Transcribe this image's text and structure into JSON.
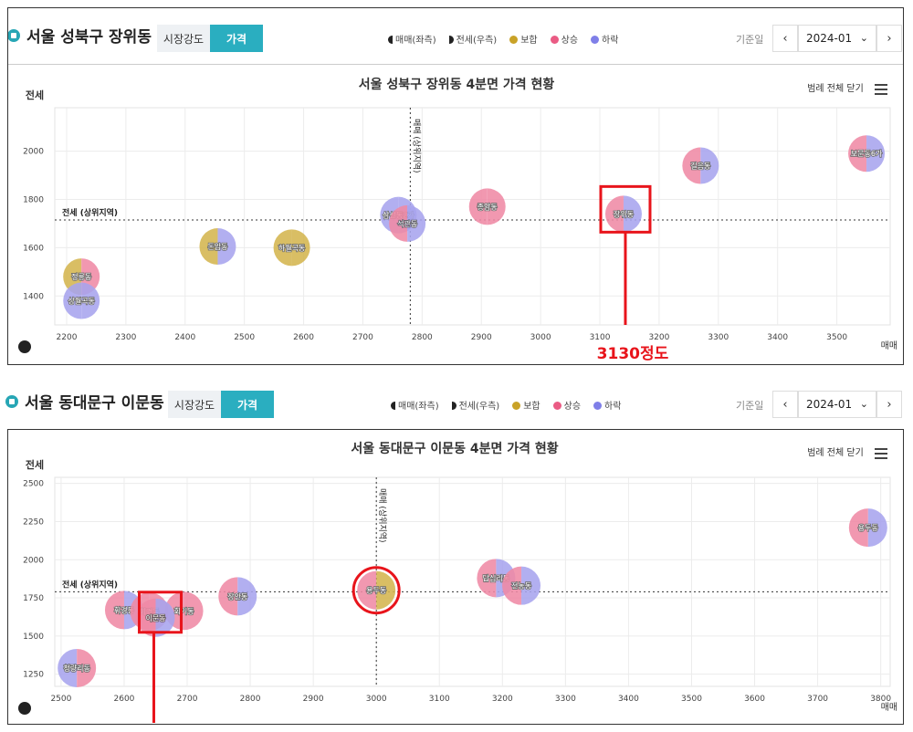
{
  "panels": [
    {
      "region": "서울 성북구 장위동",
      "tabs": [
        "시장강도",
        "가격"
      ],
      "active_tab": "가격",
      "legend": {
        "sale_axis": "매매(좌측)",
        "jeonse_axis": "전세(우측)",
        "mixed": "보합",
        "rise": "상승",
        "fall": "하락"
      },
      "base_date_label": "기준일",
      "base_date": "2024-01",
      "toggle_label": "범례 전체 닫기"
    },
    {
      "region": "서울 동대문구 이문동",
      "tabs": [
        "시장강도",
        "가격"
      ],
      "active_tab": "가격",
      "legend": {
        "sale_axis": "매매(좌측)",
        "jeonse_axis": "전세(우측)",
        "mixed": "보합",
        "rise": "상승",
        "fall": "하락"
      },
      "base_date_label": "기준일",
      "base_date": "2024-01",
      "toggle_label": "범례 전체 닫기"
    }
  ],
  "colors": {
    "mixed": "#d4b64f",
    "rise": "#f08aa6",
    "fall": "#a8a4ee",
    "accent": "#2aaec0",
    "highlight": "#e8141b"
  },
  "chart_data": [
    {
      "type": "scatter",
      "title": "서울 성북구 장위동 4분면 가격 현황",
      "xlabel": "매매",
      "ylabel": "전세",
      "xlim": [
        2180,
        3590
      ],
      "ylim": [
        1280,
        2180
      ],
      "xticks": [
        2200,
        2300,
        2400,
        2500,
        2600,
        2700,
        2800,
        2900,
        3000,
        3100,
        3200,
        3300,
        3400,
        3500
      ],
      "yticks": [
        1400,
        1600,
        1800,
        2000
      ],
      "x_ref": {
        "value": 2780,
        "label": "매매 (상위지역)"
      },
      "y_ref": {
        "value": 1715,
        "label": "전세 (상위지역)"
      },
      "points": [
        {
          "name": "정릉동",
          "x": 2225,
          "y": 1480,
          "left": "mixed",
          "right": "rise"
        },
        {
          "name": "상월곡동",
          "x": 2225,
          "y": 1380,
          "left": "fall",
          "right": "fall"
        },
        {
          "name": "돈암동",
          "x": 2455,
          "y": 1605,
          "left": "mixed",
          "right": "fall"
        },
        {
          "name": "하월곡동",
          "x": 2580,
          "y": 1600,
          "left": "mixed",
          "right": "mixed"
        },
        {
          "name": "삼선동2가",
          "x": 2760,
          "y": 1735,
          "left": "fall",
          "right": "fall"
        },
        {
          "name": "석관동",
          "x": 2775,
          "y": 1700,
          "left": "rise",
          "right": "fall"
        },
        {
          "name": "종암동",
          "x": 2910,
          "y": 1770,
          "left": "rise",
          "right": "rise"
        },
        {
          "name": "장위동",
          "x": 3140,
          "y": 1740,
          "left": "rise",
          "right": "fall"
        },
        {
          "name": "길음동",
          "x": 3270,
          "y": 1940,
          "left": "rise",
          "right": "fall"
        },
        {
          "name": "보문동6가",
          "x": 3550,
          "y": 1990,
          "left": "rise",
          "right": "fall"
        }
      ],
      "annotation": {
        "text": "3130정도",
        "target": "장위동"
      }
    },
    {
      "type": "scatter",
      "title": "서울 동대문구 이문동 4분면 가격 현황",
      "xlabel": "매매",
      "ylabel": "전세",
      "xlim": [
        2490,
        3815
      ],
      "ylim": [
        1170,
        2540
      ],
      "xticks": [
        2500,
        2600,
        2700,
        2800,
        2900,
        3000,
        3100,
        3200,
        3300,
        3400,
        3500,
        3600,
        3700,
        3800
      ],
      "yticks": [
        1250,
        1500,
        1750,
        2000,
        2250,
        2500
      ],
      "x_ref": {
        "value": 3000,
        "label": "매매 (상위지역)"
      },
      "y_ref": {
        "value": 1790,
        "label": "전세 (상위지역)"
      },
      "points": [
        {
          "name": "청량리동",
          "x": 2525,
          "y": 1290,
          "left": "fall",
          "right": "rise"
        },
        {
          "name": "휘경동",
          "x": 2600,
          "y": 1670,
          "left": "rise",
          "right": "fall"
        },
        {
          "name": "회기동",
          "x": 2695,
          "y": 1665,
          "left": "rise",
          "right": "rise"
        },
        {
          "name": "회경동",
          "x": 2640,
          "y": 1660,
          "left": "rise",
          "right": "rise"
        },
        {
          "name": "이문동",
          "x": 2650,
          "y": 1620,
          "left": "rise",
          "right": "fall"
        },
        {
          "name": "장안동",
          "x": 2780,
          "y": 1760,
          "left": "rise",
          "right": "fall"
        },
        {
          "name": "용두동",
          "x": 3000,
          "y": 1800,
          "left": "rise",
          "right": "mixed"
        },
        {
          "name": "답십리동",
          "x": 3190,
          "y": 1880,
          "left": "rise",
          "right": "fall"
        },
        {
          "name": "전농동",
          "x": 3230,
          "y": 1830,
          "left": "rise",
          "right": "fall"
        },
        {
          "name": "용두동",
          "x": 3780,
          "y": 2210,
          "left": "rise",
          "right": "fall"
        }
      ],
      "highlight_circle": "용두동",
      "highlight_box": "이문동"
    }
  ]
}
